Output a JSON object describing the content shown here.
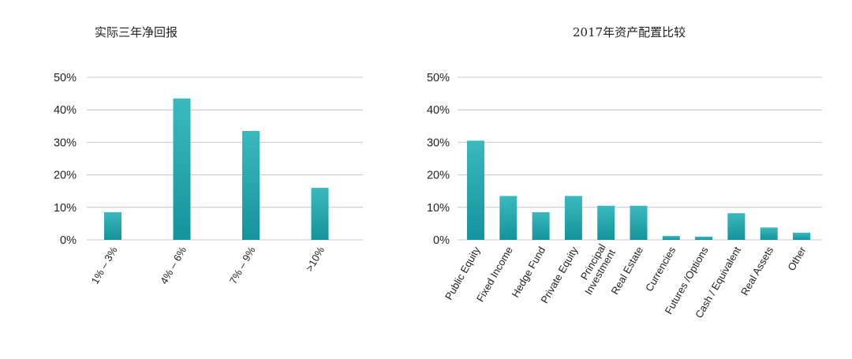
{
  "colors": {
    "bar_top": "#3ab9bf",
    "bar_bottom": "#14939c",
    "grid": "#c4c4c4",
    "text": "#222222"
  },
  "chart_data": [
    {
      "type": "bar",
      "title": "实际三年净回报",
      "categories": [
        "1% – 3%",
        "4% – 6%",
        "7% – 9%",
        ">10%"
      ],
      "values": [
        8.5,
        43.5,
        33.5,
        16
      ],
      "ylim": [
        0,
        50
      ],
      "yticks": [
        "0%",
        "10%",
        "20%",
        "30%",
        "40%",
        "50%"
      ],
      "grid": true,
      "legend": "none"
    },
    {
      "type": "bar",
      "title": "2017年资产配置比较",
      "categories": [
        "Public Equity",
        "Fixed Income",
        "Hedge Fund",
        "Private Equity",
        "Principal Investment",
        "Real Estate",
        "Currencies",
        "Futures /Options",
        "Cash / Equivalent",
        "Real Assets",
        "Other"
      ],
      "values": [
        30.5,
        13.5,
        8.5,
        13.5,
        10.5,
        10.5,
        1.2,
        1,
        8.2,
        3.8,
        2.2
      ],
      "ylim": [
        0,
        50
      ],
      "yticks": [
        "0%",
        "10%",
        "20%",
        "30%",
        "40%",
        "50%"
      ],
      "grid": true,
      "legend": "none"
    }
  ]
}
